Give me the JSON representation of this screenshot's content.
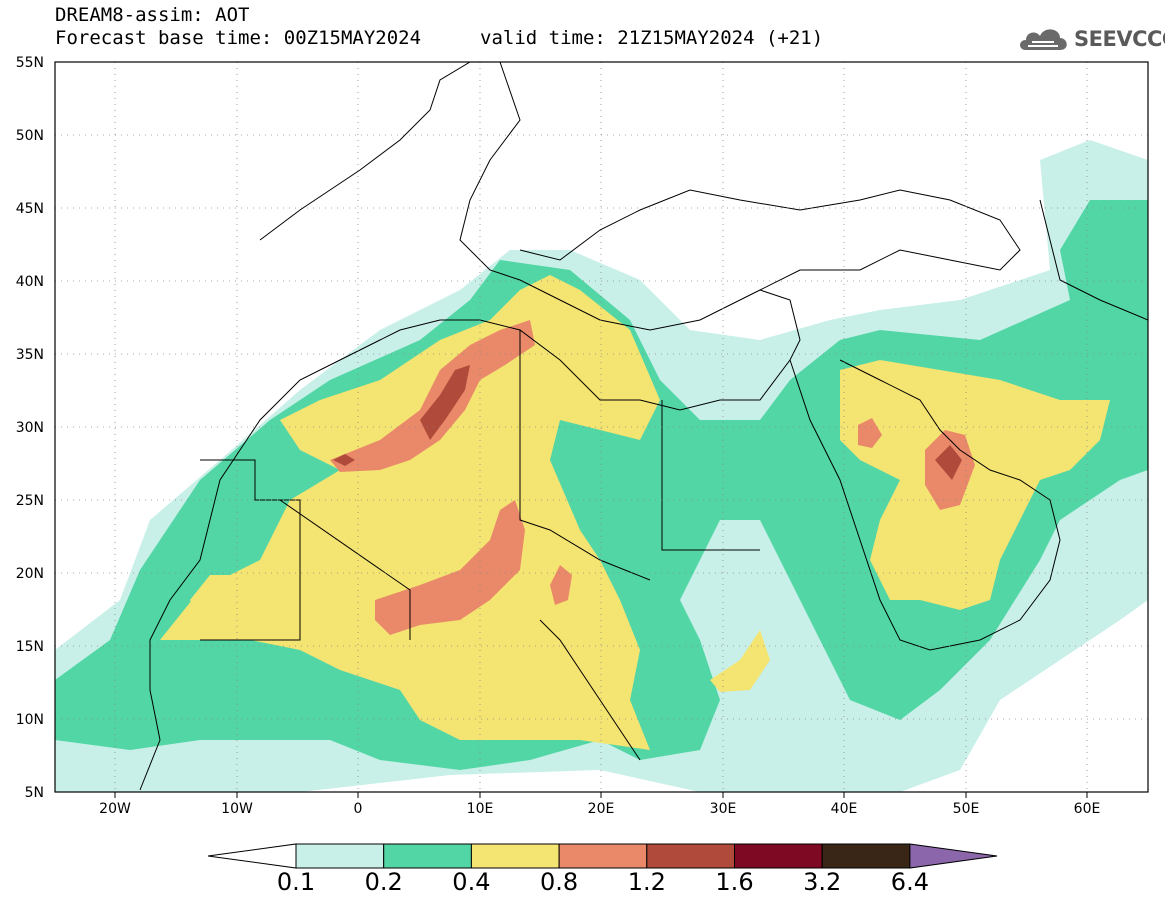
{
  "header": {
    "line1": "DREAM8-assim: AOT",
    "line2_left": "Forecast base time: 00Z15MAY2024",
    "line2_right": "valid time: 21Z15MAY2024 (+21)"
  },
  "logo": {
    "text": "SEEVCCC",
    "icon": "cloud-icon"
  },
  "map": {
    "lon_range": [
      -25,
      65
    ],
    "lat_range": [
      5,
      55
    ],
    "x_ticks": [
      "20W",
      "10W",
      "0",
      "10E",
      "20E",
      "30E",
      "40E",
      "50E",
      "60E"
    ],
    "y_ticks": [
      "55N",
      "50N",
      "45N",
      "40N",
      "35N",
      "30N",
      "25N",
      "20N",
      "15N",
      "10N",
      "5N"
    ],
    "grid": "dotted"
  },
  "colorbar": {
    "levels": [
      "0.1",
      "0.2",
      "0.4",
      "0.8",
      "1.2",
      "1.6",
      "3.2",
      "6.4"
    ],
    "colors": [
      "#c8f0e8",
      "#52d6a6",
      "#f4e472",
      "#e9896a",
      "#b04a3a",
      "#7d0a22",
      "#3a2616",
      "#8c66aa"
    ],
    "under_color": "#ffffff"
  },
  "chart_data": {
    "type": "heatmap",
    "variable": "AOT",
    "xlim": [
      -25,
      65
    ],
    "ylim": [
      5,
      55
    ],
    "levels": [
      0.1,
      0.2,
      0.4,
      0.8,
      1.2,
      1.6,
      3.2,
      6.4
    ]
  }
}
